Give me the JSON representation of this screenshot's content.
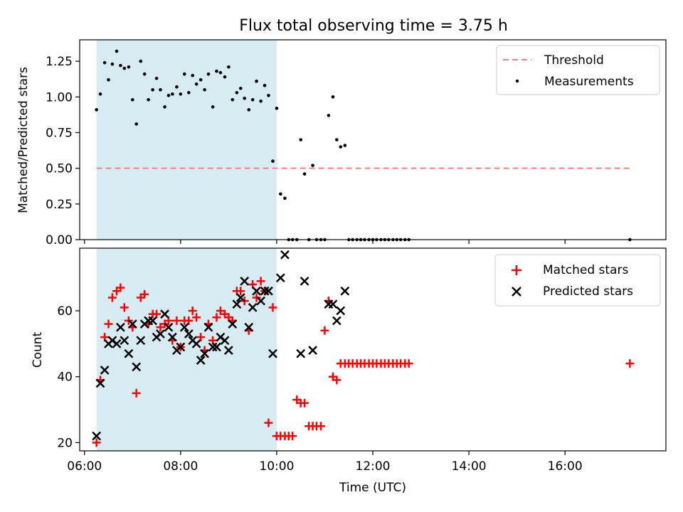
{
  "title": "Flux total observing time = 3.75 h",
  "colors": {
    "shade": "#add8e6",
    "threshold": "#ff7f7f",
    "measurement": "#000000",
    "matched": "#ff0000",
    "predicted": "#000000"
  },
  "chart_data": [
    {
      "type": "scatter",
      "ylabel": "Matched/Predicted stars",
      "xlim": [
        5.9,
        18.1
      ],
      "ylim": [
        0,
        1.4
      ],
      "yticks": [
        0,
        0.25,
        0.5,
        0.75,
        1.0,
        1.25
      ],
      "ytick_labels": [
        "0.00",
        "0.25",
        "0.50",
        "0.75",
        "1.00",
        "1.25"
      ],
      "shaded_region": [
        6.25,
        10.0
      ],
      "legend_position": "top-right",
      "threshold": {
        "name": "Threshold",
        "y": 0.5,
        "x_range": [
          6.25,
          17.35
        ],
        "style": "dashed"
      },
      "series": [
        {
          "name": "Measurements",
          "marker": "dot",
          "x": [
            6.25,
            6.33,
            6.42,
            6.5,
            6.58,
            6.67,
            6.75,
            6.83,
            6.92,
            7.0,
            7.08,
            7.17,
            7.25,
            7.33,
            7.42,
            7.5,
            7.58,
            7.67,
            7.75,
            7.83,
            7.92,
            8.0,
            8.08,
            8.17,
            8.25,
            8.33,
            8.42,
            8.5,
            8.58,
            8.67,
            8.75,
            8.83,
            8.92,
            9.0,
            9.08,
            9.17,
            9.25,
            9.33,
            9.42,
            9.5,
            9.58,
            9.67,
            9.75,
            9.83,
            9.92,
            10.0,
            10.08,
            10.17,
            10.25,
            10.33,
            10.42,
            10.5,
            10.58,
            10.67,
            10.75,
            10.83,
            10.92,
            11.0,
            11.08,
            11.17,
            11.25,
            11.33,
            11.42,
            11.5,
            11.58,
            11.67,
            11.75,
            11.83,
            11.92,
            12.0,
            12.08,
            12.17,
            12.25,
            12.33,
            12.42,
            12.5,
            12.58,
            12.67,
            12.75,
            17.35
          ],
          "y": [
            0.91,
            1.02,
            1.24,
            1.12,
            1.23,
            1.32,
            1.22,
            1.2,
            1.21,
            0.98,
            0.81,
            1.25,
            1.16,
            0.98,
            1.05,
            1.13,
            1.05,
            0.93,
            1.01,
            1.02,
            1.07,
            1.02,
            1.16,
            1.03,
            1.15,
            1.09,
            1.12,
            1.05,
            1.16,
            0.93,
            1.18,
            1.17,
            1.14,
            1.21,
            0.98,
            1.03,
            1.06,
            0.99,
            0.91,
            0.98,
            1.11,
            0.97,
            1.08,
            1.01,
            0.55,
            0.92,
            0.32,
            0.29,
            0.0,
            0.0,
            0.0,
            0.7,
            0.46,
            0.0,
            0.52,
            0.0,
            0.0,
            0.0,
            0.87,
            1.0,
            0.7,
            0.65,
            0.66,
            0.0,
            0.0,
            0.0,
            0.0,
            0.0,
            0.0,
            0.0,
            0.0,
            0.0,
            0.0,
            0.0,
            0.0,
            0.0,
            0.0,
            0.0,
            0.0,
            0.0
          ]
        }
      ]
    },
    {
      "type": "scatter",
      "xlabel": "Time (UTC)",
      "ylabel": "Count",
      "xlim": [
        5.9,
        18.1
      ],
      "ylim": [
        17.5,
        79
      ],
      "xticks": [
        6,
        8,
        10,
        12,
        14,
        16
      ],
      "xtick_labels": [
        "06:00",
        "08:00",
        "10:00",
        "12:00",
        "14:00",
        "16:00"
      ],
      "yticks": [
        20,
        40,
        60
      ],
      "ytick_labels": [
        "20",
        "40",
        "60"
      ],
      "shaded_region": [
        6.25,
        10.0
      ],
      "legend_position": "top-right",
      "series": [
        {
          "name": "Matched stars",
          "marker": "plus",
          "x": [
            6.25,
            6.33,
            6.42,
            6.5,
            6.58,
            6.67,
            6.75,
            6.83,
            6.92,
            7.0,
            7.08,
            7.17,
            7.25,
            7.33,
            7.42,
            7.5,
            7.58,
            7.67,
            7.75,
            7.83,
            7.92,
            8.0,
            8.08,
            8.17,
            8.25,
            8.33,
            8.42,
            8.5,
            8.58,
            8.67,
            8.75,
            8.83,
            8.92,
            9.0,
            9.08,
            9.17,
            9.25,
            9.33,
            9.42,
            9.5,
            9.58,
            9.67,
            9.75,
            9.83,
            9.92,
            10.0,
            10.08,
            10.17,
            10.25,
            10.33,
            10.42,
            10.5,
            10.58,
            10.67,
            10.75,
            10.83,
            10.92,
            11.0,
            11.08,
            11.17,
            11.25,
            11.33,
            11.42,
            11.5,
            11.58,
            11.67,
            11.75,
            11.83,
            11.92,
            12.0,
            12.08,
            12.17,
            12.25,
            12.33,
            12.42,
            12.5,
            12.58,
            12.67,
            12.75,
            17.35
          ],
          "y": [
            20,
            39,
            52,
            56,
            64,
            66,
            67,
            61,
            57,
            55,
            35,
            64,
            65,
            56,
            59,
            59,
            55,
            56,
            57,
            51,
            57,
            49,
            57,
            57,
            60,
            58,
            52,
            48,
            56,
            51,
            58,
            60,
            59,
            58,
            57,
            66,
            66,
            63,
            54,
            68,
            64,
            69,
            66,
            26,
            61,
            22,
            22,
            22,
            22,
            22,
            33,
            32,
            32,
            25,
            25,
            25,
            25,
            54,
            63,
            40,
            39,
            44,
            44,
            44,
            44,
            44,
            44,
            44,
            44,
            44,
            44,
            44,
            44,
            44,
            44,
            44,
            44,
            44,
            44,
            44
          ]
        },
        {
          "name": "Predicted stars",
          "marker": "x",
          "x": [
            6.25,
            6.33,
            6.42,
            6.5,
            6.58,
            6.67,
            6.75,
            6.83,
            6.92,
            7.0,
            7.08,
            7.17,
            7.25,
            7.33,
            7.42,
            7.5,
            7.58,
            7.67,
            7.75,
            7.83,
            7.92,
            8.0,
            8.08,
            8.17,
            8.25,
            8.33,
            8.42,
            8.5,
            8.58,
            8.67,
            8.75,
            8.83,
            8.92,
            9.0,
            9.08,
            9.17,
            9.25,
            9.33,
            9.42,
            9.5,
            9.58,
            9.67,
            9.75,
            9.83,
            9.92,
            10.08,
            10.17,
            10.5,
            10.58,
            10.75,
            11.08,
            11.17,
            11.25,
            11.33,
            11.42
          ],
          "y": [
            22,
            38,
            42,
            50,
            51,
            50,
            55,
            51,
            47,
            56,
            43,
            51,
            56,
            57,
            57,
            52,
            53,
            59,
            55,
            52,
            48,
            49,
            55,
            53,
            51,
            50,
            45,
            47,
            55,
            49,
            49,
            52,
            51,
            48,
            56,
            62,
            64,
            69,
            55,
            61,
            66,
            63,
            66,
            66,
            47,
            70,
            77,
            47,
            69,
            48,
            62,
            62,
            57,
            60,
            66
          ]
        }
      ]
    }
  ]
}
